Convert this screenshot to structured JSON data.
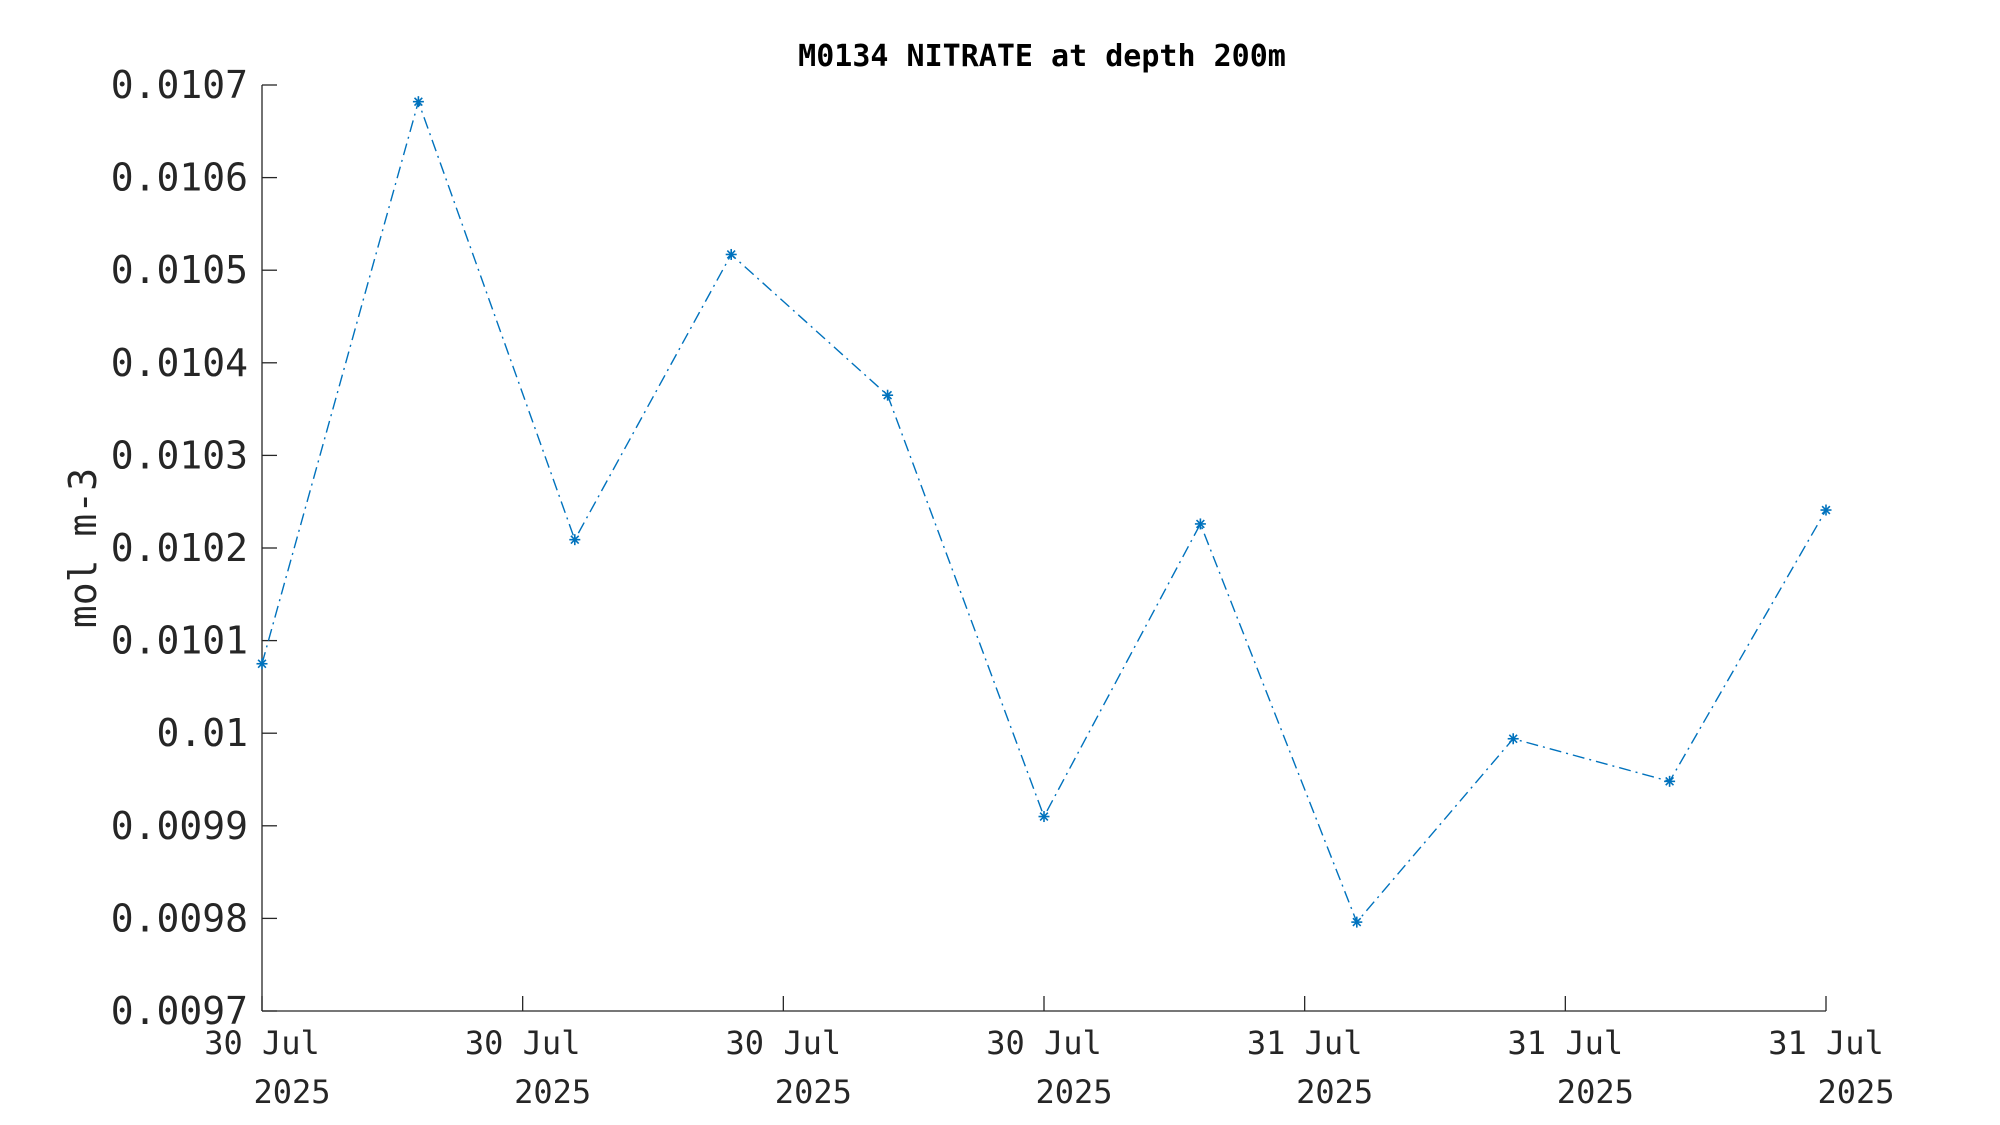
{
  "chart_data": {
    "type": "line",
    "title": "M0134 NITRATE at depth 200m",
    "xlabel": "",
    "ylabel": "mol m-3",
    "ylim": [
      0.0097,
      0.0107
    ],
    "yticks": [
      "0.0097",
      "0.0098",
      "0.0099",
      "0.01",
      "0.0101",
      "0.0102",
      "0.0103",
      "0.0104",
      "0.0105",
      "0.0106",
      "0.0107"
    ],
    "yticks_values": [
      0.0097,
      0.0098,
      0.0099,
      0.01,
      0.0101,
      0.0102,
      0.0103,
      0.0104,
      0.0105,
      0.0106,
      0.0107
    ],
    "xlim": [
      "2025-07-30 00:00",
      "2025-07-31 12:00"
    ],
    "xticks": [
      {
        "x": "2025-07-30 00:00",
        "line1": "30 Jul",
        "line2": "2025"
      },
      {
        "x": "2025-07-30 06:00",
        "line1": "30 Jul",
        "line2": "2025"
      },
      {
        "x": "2025-07-30 12:00",
        "line1": "30 Jul",
        "line2": "2025"
      },
      {
        "x": "2025-07-30 18:00",
        "line1": "30 Jul",
        "line2": "2025"
      },
      {
        "x": "2025-07-31 00:00",
        "line1": "31 Jul",
        "line2": "2025"
      },
      {
        "x": "2025-07-31 06:00",
        "line1": "31 Jul",
        "line2": "2025"
      },
      {
        "x": "2025-07-31 12:00",
        "line1": "31 Jul",
        "line2": "2025"
      }
    ],
    "series": [
      {
        "x": [
          "2025-07-30 00:00",
          "2025-07-30 03:36",
          "2025-07-30 07:12",
          "2025-07-30 10:48",
          "2025-07-30 14:24",
          "2025-07-30 18:00",
          "2025-07-30 21:36",
          "2025-07-31 01:12",
          "2025-07-31 04:48",
          "2025-07-31 08:24",
          "2025-07-31 12:00"
        ],
        "values": [
          0.010075,
          0.010682,
          0.010209,
          0.010517,
          0.010365,
          0.00991,
          0.010226,
          0.009796,
          0.009994,
          0.009948,
          0.010241
        ],
        "color": "#0072BD",
        "line_style": "dash-dot",
        "marker": "asterisk"
      }
    ],
    "grid": false,
    "legend": "none"
  }
}
